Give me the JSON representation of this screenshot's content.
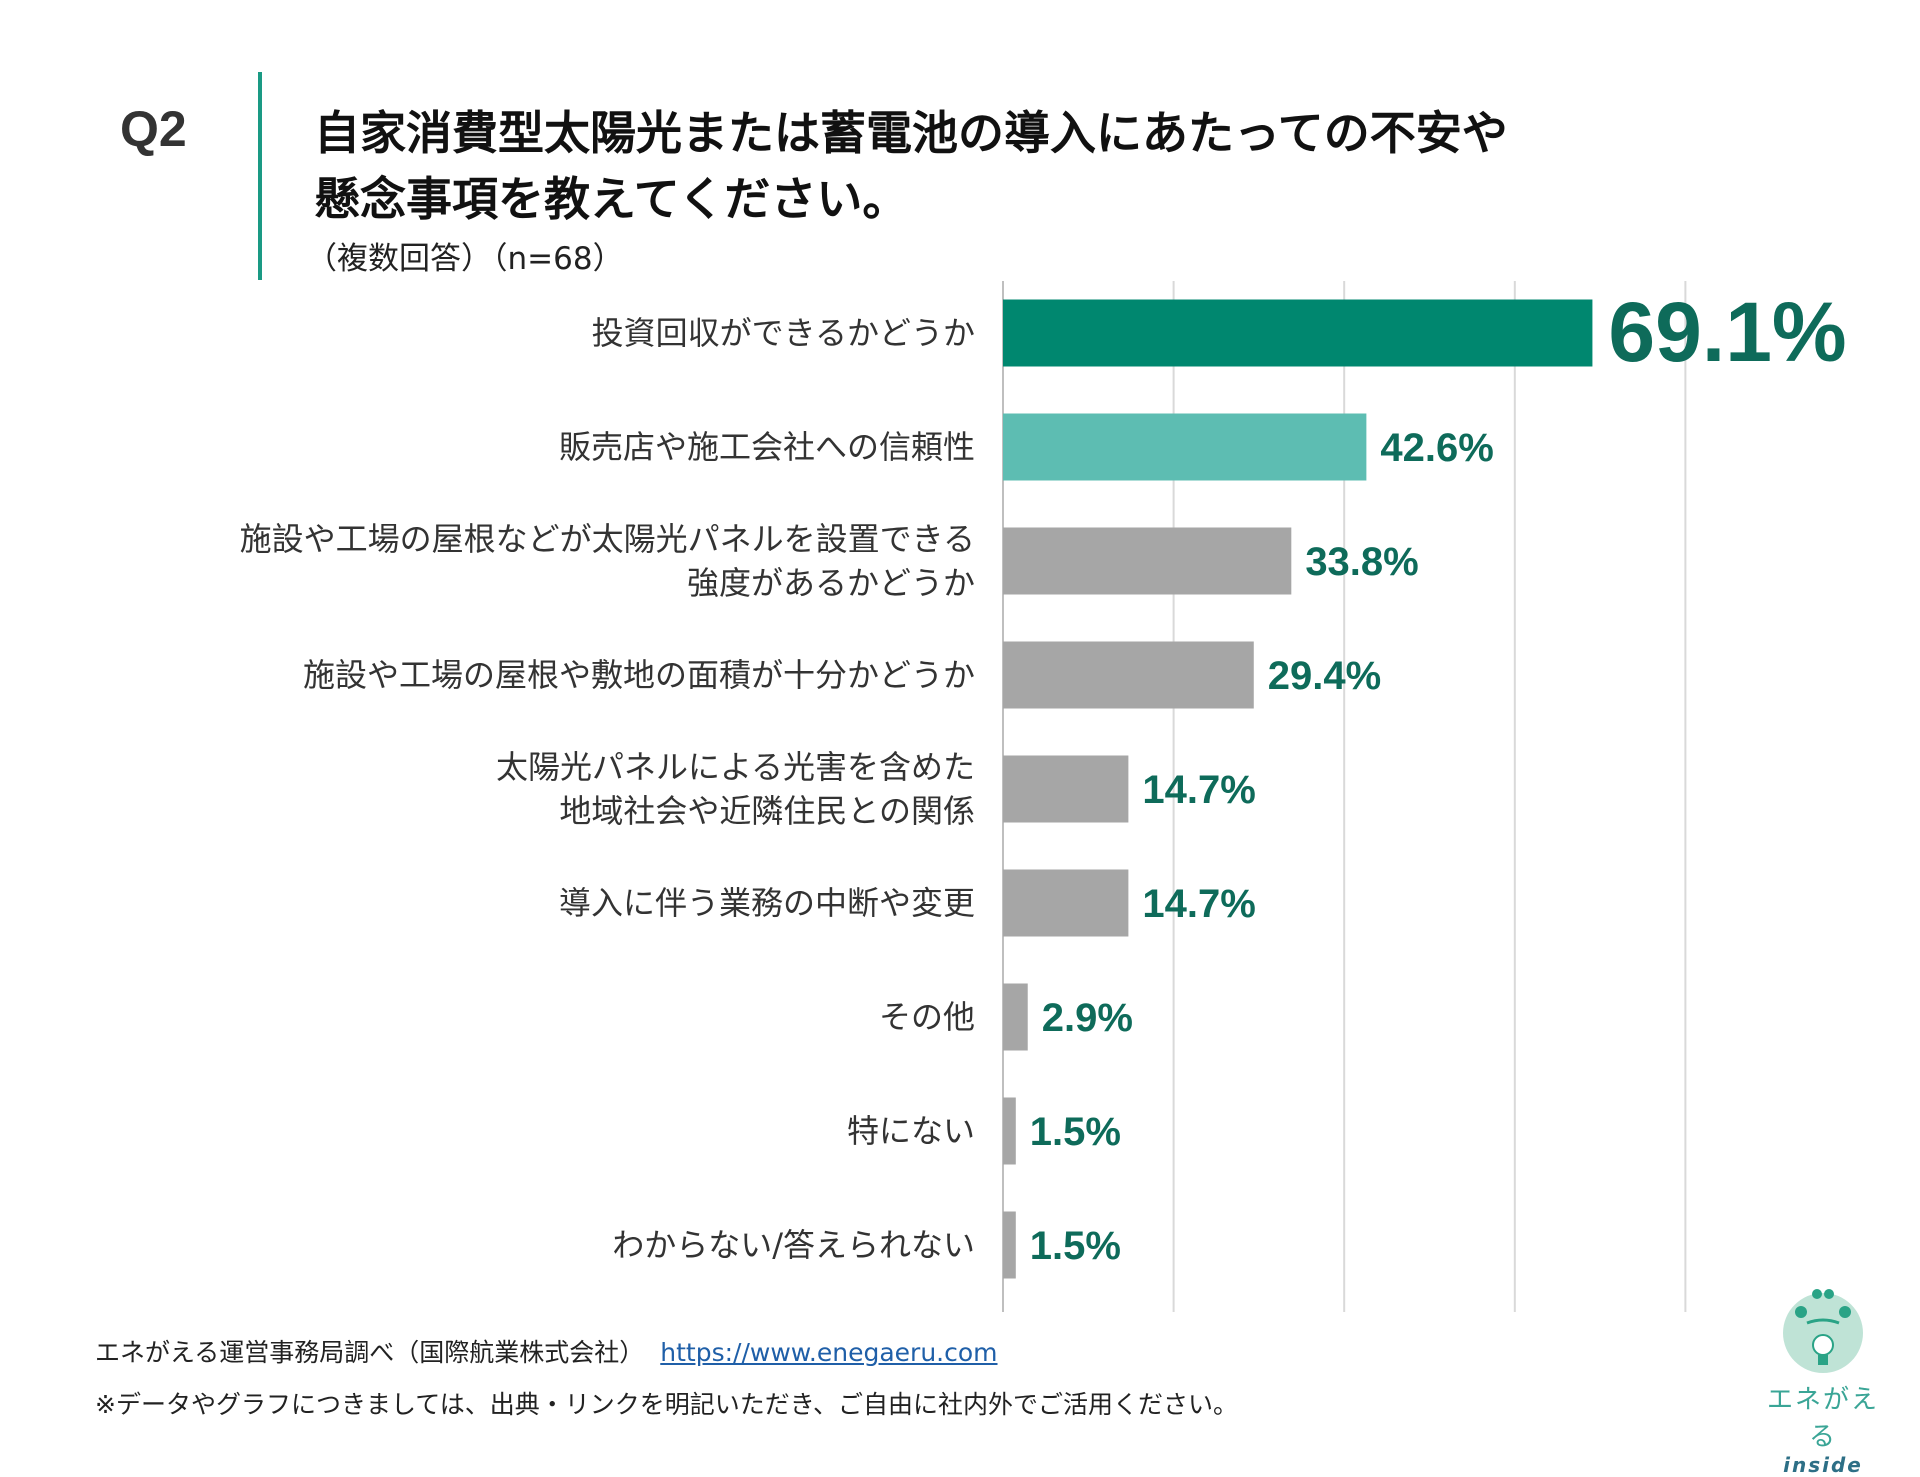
{
  "question_label": "Q2",
  "title_lines": [
    "自家消費型太陽光または蓄電池の導入にあたっての不安や",
    "懸念事項を教えてください。"
  ],
  "subtitle": "（複数回答）（n=68）",
  "chart_data": {
    "type": "bar",
    "orientation": "horizontal",
    "categories": [
      [
        "投資回収ができるかどうか"
      ],
      [
        "販売店や施工会社への信頼性"
      ],
      [
        "施設や工場の屋根などが太陽光パネルを設置できる",
        "強度があるかどうか"
      ],
      [
        "施設や工場の屋根や敷地の面積が十分かどうか"
      ],
      [
        "太陽光パネルによる光害を含めた",
        "地域社会や近隣住民との関係"
      ],
      [
        "導入に伴う業務の中断や変更"
      ],
      [
        "その他"
      ],
      [
        "特にない"
      ],
      [
        "わからない/答えられない"
      ]
    ],
    "values": [
      69.1,
      42.6,
      33.8,
      29.4,
      14.7,
      14.7,
      2.9,
      1.5,
      1.5
    ],
    "value_labels": [
      "69.1%",
      "42.6%",
      "33.8%",
      "29.4%",
      "14.7%",
      "14.7%",
      "2.9%",
      "1.5%",
      "1.5%"
    ],
    "bar_colors": [
      "#00876f",
      "#5dbdb2",
      "#a6a6a6",
      "#a6a6a6",
      "#a6a6a6",
      "#a6a6a6",
      "#a6a6a6",
      "#a6a6a6",
      "#a6a6a6"
    ],
    "label_color": "#0e6b5a",
    "xlim": [
      0,
      80
    ],
    "grid": true,
    "grid_step": 20
  },
  "footer": {
    "source": "エネがえる運営事務局調べ（国際航業株式会社）",
    "link": "https://www.enegaeru.com",
    "note": "※データやグラフにつきましては、出典・リンクを明記いただき、ご自由に社内外でご活用ください。"
  },
  "logo": {
    "text": "エネがえる",
    "sub": "inside"
  }
}
